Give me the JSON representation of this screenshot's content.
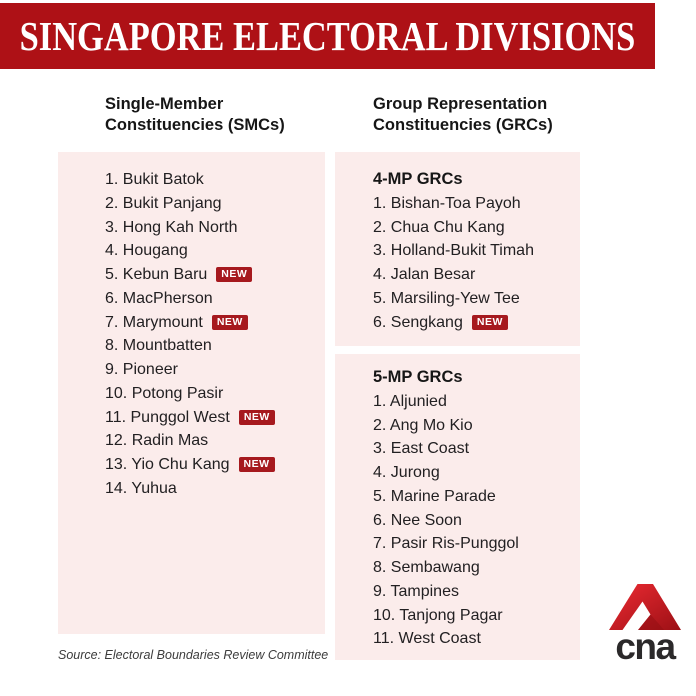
{
  "header": {
    "title": "SINGAPORE ELECTORAL DIVISIONS",
    "bg_color": "#AE1116",
    "text_color": "#FFFFFF"
  },
  "columns": {
    "smc": {
      "heading_line1": "Single-Member",
      "heading_line2": "Constituencies (SMCs)",
      "items": [
        {
          "label": "Bukit Batok",
          "new": false
        },
        {
          "label": "Bukit Panjang",
          "new": false
        },
        {
          "label": "Hong Kah North",
          "new": false
        },
        {
          "label": "Hougang",
          "new": false
        },
        {
          "label": "Kebun Baru",
          "new": true
        },
        {
          "label": "MacPherson",
          "new": false
        },
        {
          "label": "Marymount",
          "new": true
        },
        {
          "label": "Mountbatten",
          "new": false
        },
        {
          "label": "Pioneer",
          "new": false
        },
        {
          "label": "Potong Pasir",
          "new": false
        },
        {
          "label": "Punggol West",
          "new": true
        },
        {
          "label": "Radin Mas",
          "new": false
        },
        {
          "label": "Yio Chu Kang",
          "new": true
        },
        {
          "label": "Yuhua",
          "new": false
        }
      ]
    },
    "grc": {
      "heading_line1": "Group Representation",
      "heading_line2": "Constituencies (GRCs)",
      "groups": [
        {
          "title": "4-MP GRCs",
          "items": [
            {
              "label": "Bishan-Toa Payoh",
              "new": false
            },
            {
              "label": "Chua Chu Kang",
              "new": false
            },
            {
              "label": "Holland-Bukit Timah",
              "new": false
            },
            {
              "label": "Jalan Besar",
              "new": false
            },
            {
              "label": "Marsiling-Yew Tee",
              "new": false
            },
            {
              "label": "Sengkang",
              "new": true
            }
          ]
        },
        {
          "title": "5-MP GRCs",
          "items": [
            {
              "label": "Aljunied",
              "new": false
            },
            {
              "label": "Ang Mo Kio",
              "new": false
            },
            {
              "label": "East Coast",
              "new": false
            },
            {
              "label": "Jurong",
              "new": false
            },
            {
              "label": "Marine Parade",
              "new": false
            },
            {
              "label": "Nee Soon",
              "new": false
            },
            {
              "label": "Pasir Ris-Punggol",
              "new": false
            },
            {
              "label": "Sembawang",
              "new": false
            },
            {
              "label": "Tampines",
              "new": false
            },
            {
              "label": "Tanjong Pagar",
              "new": false
            },
            {
              "label": "West Coast",
              "new": false
            }
          ]
        }
      ]
    }
  },
  "badge": {
    "label": "NEW",
    "bg": "#A6191E",
    "color": "#FFFFFF"
  },
  "panel_color": "#FBECEB",
  "source": {
    "text": "Source: Electoral Boundaries Review Committee"
  },
  "logo": {
    "word": "cna",
    "red_light": "#ED2B33",
    "red_dark": "#9C1015"
  }
}
